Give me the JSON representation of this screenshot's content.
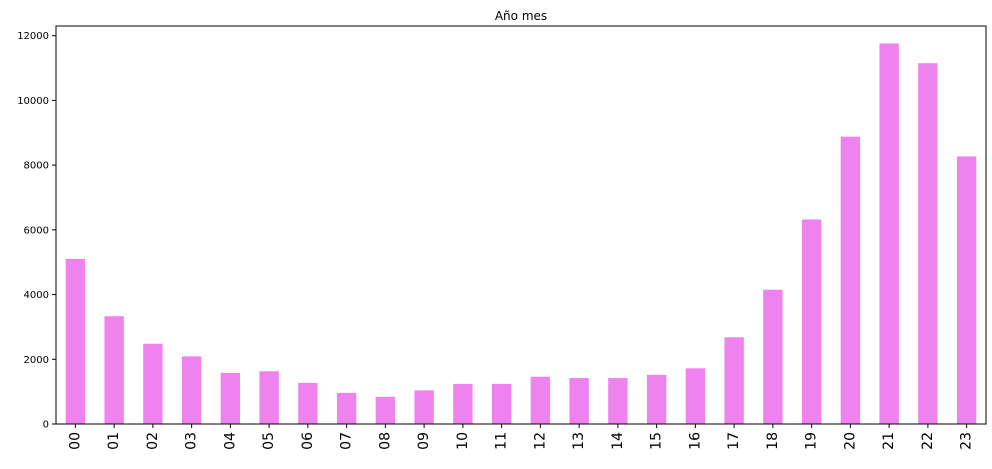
{
  "chart_data": {
    "type": "bar",
    "title": "Año mes",
    "xlabel": "",
    "ylabel": "",
    "categories": [
      "00",
      "01",
      "02",
      "03",
      "04",
      "05",
      "06",
      "07",
      "08",
      "09",
      "10",
      "11",
      "12",
      "13",
      "14",
      "15",
      "16",
      "17",
      "18",
      "19",
      "20",
      "21",
      "22",
      "23"
    ],
    "values": [
      5100,
      3330,
      2480,
      2090,
      1580,
      1630,
      1270,
      960,
      840,
      1040,
      1240,
      1240,
      1460,
      1420,
      1420,
      1520,
      1720,
      2680,
      4150,
      6320,
      8880,
      11760,
      11150,
      8270
    ],
    "ylim": [
      0,
      12300
    ],
    "yticks": [
      0,
      2000,
      4000,
      6000,
      8000,
      10000,
      12000
    ],
    "bar_color": "#ee82ee",
    "grid": false,
    "legend": "none"
  }
}
